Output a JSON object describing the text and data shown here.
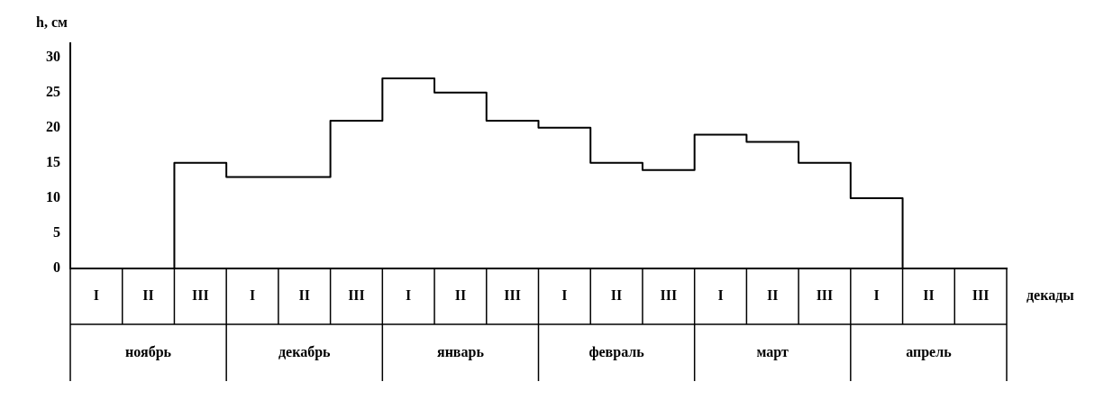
{
  "chart_data": {
    "type": "step",
    "ylabel": "h, см",
    "xlabel": "декады",
    "categories": [
      "I",
      "II",
      "III",
      "I",
      "II",
      "III",
      "I",
      "II",
      "III",
      "I",
      "II",
      "III",
      "I",
      "II",
      "III",
      "I",
      "II",
      "III"
    ],
    "values": [
      0,
      0,
      15,
      13,
      13,
      21,
      27,
      25,
      21,
      20,
      15,
      14,
      19,
      18,
      15,
      10,
      0,
      0
    ],
    "color": "#000000",
    "ylim": [
      0,
      32
    ],
    "yticks": [
      0,
      5,
      10,
      15,
      20,
      25,
      30
    ],
    "grid": false,
    "legend": false,
    "annotations": [
      "ноябрь",
      "декабрь",
      "январь",
      "февраль",
      "март",
      "апрель"
    ]
  }
}
